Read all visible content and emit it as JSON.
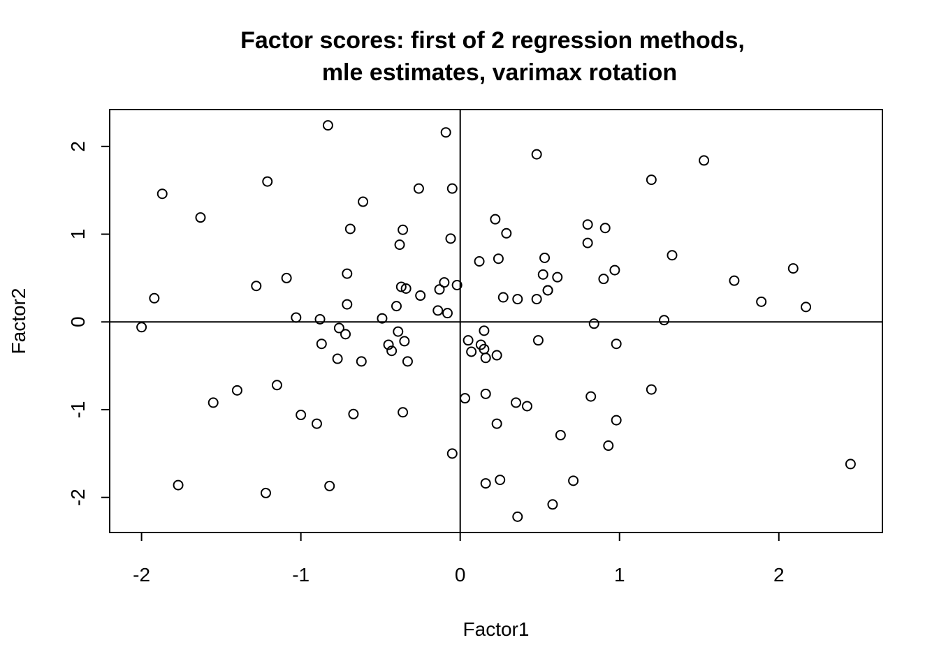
{
  "chart_data": {
    "type": "scatter",
    "title_lines": [
      "Factor scores: first of 2 regression methods,",
      "mle estimates, varimax rotation"
    ],
    "xlabel": "Factor1",
    "ylabel": "Factor2",
    "xlim": [
      -2.2,
      2.65
    ],
    "ylim": [
      -2.4,
      2.42
    ],
    "xticks": [
      -2,
      -1,
      0,
      1,
      2
    ],
    "yticks": [
      -2,
      -1,
      0,
      1,
      2
    ],
    "reference_lines": {
      "h": 0,
      "v": 0
    },
    "grid": false,
    "legend": "none",
    "points": [
      {
        "x": -2.0,
        "y": -0.06
      },
      {
        "x": -1.92,
        "y": 0.27
      },
      {
        "x": -1.87,
        "y": 1.46
      },
      {
        "x": -1.77,
        "y": -1.86
      },
      {
        "x": -1.63,
        "y": 1.19
      },
      {
        "x": -1.55,
        "y": -0.92
      },
      {
        "x": -1.4,
        "y": -0.78
      },
      {
        "x": -1.28,
        "y": 0.41
      },
      {
        "x": -1.22,
        "y": -1.95
      },
      {
        "x": -1.21,
        "y": 1.6
      },
      {
        "x": -1.15,
        "y": -0.72
      },
      {
        "x": -1.09,
        "y": 0.5
      },
      {
        "x": -1.03,
        "y": 0.05
      },
      {
        "x": -1.0,
        "y": -1.06
      },
      {
        "x": -0.9,
        "y": -1.16
      },
      {
        "x": -0.88,
        "y": 0.03
      },
      {
        "x": -0.87,
        "y": -0.25
      },
      {
        "x": -0.83,
        "y": 2.24
      },
      {
        "x": -0.82,
        "y": -1.87
      },
      {
        "x": -0.77,
        "y": -0.42
      },
      {
        "x": -0.76,
        "y": -0.07
      },
      {
        "x": -0.72,
        "y": -0.14
      },
      {
        "x": -0.71,
        "y": 0.55
      },
      {
        "x": -0.71,
        "y": 0.2
      },
      {
        "x": -0.69,
        "y": 1.06
      },
      {
        "x": -0.67,
        "y": -1.05
      },
      {
        "x": -0.62,
        "y": -0.45
      },
      {
        "x": -0.61,
        "y": 1.37
      },
      {
        "x": -0.49,
        "y": 0.04
      },
      {
        "x": -0.45,
        "y": -0.26
      },
      {
        "x": -0.43,
        "y": -0.33
      },
      {
        "x": -0.4,
        "y": 0.18
      },
      {
        "x": -0.39,
        "y": -0.11
      },
      {
        "x": -0.38,
        "y": 0.88
      },
      {
        "x": -0.37,
        "y": 0.4
      },
      {
        "x": -0.36,
        "y": 1.05
      },
      {
        "x": -0.36,
        "y": -1.03
      },
      {
        "x": -0.35,
        "y": -0.22
      },
      {
        "x": -0.34,
        "y": 0.38
      },
      {
        "x": -0.33,
        "y": -0.45
      },
      {
        "x": -0.26,
        "y": 1.52
      },
      {
        "x": -0.25,
        "y": 0.3
      },
      {
        "x": -0.14,
        "y": 0.13
      },
      {
        "x": -0.13,
        "y": 0.37
      },
      {
        "x": -0.1,
        "y": 0.45
      },
      {
        "x": -0.09,
        "y": 2.16
      },
      {
        "x": -0.08,
        "y": 0.1
      },
      {
        "x": -0.06,
        "y": 0.95
      },
      {
        "x": -0.05,
        "y": 1.52
      },
      {
        "x": -0.05,
        "y": -1.5
      },
      {
        "x": -0.02,
        "y": 0.42
      },
      {
        "x": 0.03,
        "y": -0.87
      },
      {
        "x": 0.05,
        "y": -0.21
      },
      {
        "x": 0.07,
        "y": -0.34
      },
      {
        "x": 0.12,
        "y": 0.69
      },
      {
        "x": 0.13,
        "y": -0.26
      },
      {
        "x": 0.15,
        "y": -0.1
      },
      {
        "x": 0.15,
        "y": -0.31
      },
      {
        "x": 0.16,
        "y": -0.41
      },
      {
        "x": 0.16,
        "y": -0.82
      },
      {
        "x": 0.16,
        "y": -1.84
      },
      {
        "x": 0.22,
        "y": 1.17
      },
      {
        "x": 0.23,
        "y": -0.38
      },
      {
        "x": 0.23,
        "y": -1.16
      },
      {
        "x": 0.24,
        "y": 0.72
      },
      {
        "x": 0.25,
        "y": -1.8
      },
      {
        "x": 0.27,
        "y": 0.28
      },
      {
        "x": 0.29,
        "y": 1.01
      },
      {
        "x": 0.35,
        "y": -0.92
      },
      {
        "x": 0.36,
        "y": 0.26
      },
      {
        "x": 0.36,
        "y": -2.22
      },
      {
        "x": 0.42,
        "y": -0.96
      },
      {
        "x": 0.48,
        "y": 1.91
      },
      {
        "x": 0.48,
        "y": 0.26
      },
      {
        "x": 0.49,
        "y": -0.21
      },
      {
        "x": 0.52,
        "y": 0.54
      },
      {
        "x": 0.53,
        "y": 0.73
      },
      {
        "x": 0.55,
        "y": 0.36
      },
      {
        "x": 0.55,
        "y": 0.36
      },
      {
        "x": 0.58,
        "y": -2.08
      },
      {
        "x": 0.61,
        "y": 0.51
      },
      {
        "x": 0.63,
        "y": -1.29
      },
      {
        "x": 0.71,
        "y": -1.81
      },
      {
        "x": 0.8,
        "y": 1.11
      },
      {
        "x": 0.8,
        "y": 0.9
      },
      {
        "x": 0.82,
        "y": -0.85
      },
      {
        "x": 0.84,
        "y": -0.02
      },
      {
        "x": 0.9,
        "y": 0.49
      },
      {
        "x": 0.91,
        "y": 1.07
      },
      {
        "x": 0.93,
        "y": -1.41
      },
      {
        "x": 0.97,
        "y": 0.59
      },
      {
        "x": 0.98,
        "y": -1.12
      },
      {
        "x": 0.98,
        "y": -0.25
      },
      {
        "x": 1.2,
        "y": 1.62
      },
      {
        "x": 1.2,
        "y": -0.77
      },
      {
        "x": 1.28,
        "y": 0.02
      },
      {
        "x": 1.33,
        "y": 0.76
      },
      {
        "x": 1.53,
        "y": 1.84
      },
      {
        "x": 1.72,
        "y": 0.47
      },
      {
        "x": 1.89,
        "y": 0.23
      },
      {
        "x": 2.09,
        "y": 0.61
      },
      {
        "x": 2.17,
        "y": 0.17
      },
      {
        "x": 2.45,
        "y": -1.62
      }
    ]
  }
}
